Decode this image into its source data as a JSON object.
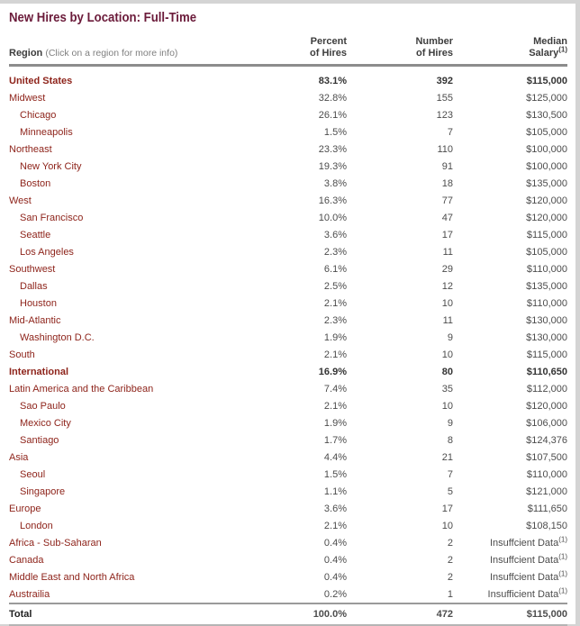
{
  "title": "New Hires by Location: Full-Time",
  "colors": {
    "title_maroon": "#6b1b3a",
    "region_link_red": "#8e241b",
    "value_gray": "#4c4c4c",
    "header_rule_gray": "#8c8c8c",
    "page_edge_gray": "#d4d4d4"
  },
  "table": {
    "header": {
      "region_label": "Region",
      "region_hint": "(Click on a region for more info)",
      "percent_line1": "Percent",
      "percent_line2": "of Hires",
      "number_line1": "Number",
      "number_line2": "of Hires",
      "salary_line1": "Median",
      "salary_line2": "Salary",
      "salary_sup": "(1)"
    },
    "rows": [
      {
        "region": "United States",
        "indent": 0,
        "bold": true,
        "percent": "83.1%",
        "number": "392",
        "salary": "$115,000"
      },
      {
        "region": "Midwest",
        "indent": 0,
        "bold": false,
        "percent": "32.8%",
        "number": "155",
        "salary": "$125,000"
      },
      {
        "region": "Chicago",
        "indent": 1,
        "bold": false,
        "percent": "26.1%",
        "number": "123",
        "salary": "$130,500"
      },
      {
        "region": "Minneapolis",
        "indent": 1,
        "bold": false,
        "percent": "1.5%",
        "number": "7",
        "salary": "$105,000"
      },
      {
        "region": "Northeast",
        "indent": 0,
        "bold": false,
        "percent": "23.3%",
        "number": "110",
        "salary": "$100,000"
      },
      {
        "region": "New York City",
        "indent": 1,
        "bold": false,
        "percent": "19.3%",
        "number": "91",
        "salary": "$100,000"
      },
      {
        "region": "Boston",
        "indent": 1,
        "bold": false,
        "percent": "3.8%",
        "number": "18",
        "salary": "$135,000"
      },
      {
        "region": "West",
        "indent": 0,
        "bold": false,
        "percent": "16.3%",
        "number": "77",
        "salary": "$120,000"
      },
      {
        "region": "San Francisco",
        "indent": 1,
        "bold": false,
        "percent": "10.0%",
        "number": "47",
        "salary": "$120,000"
      },
      {
        "region": "Seattle",
        "indent": 1,
        "bold": false,
        "percent": "3.6%",
        "number": "17",
        "salary": "$115,000"
      },
      {
        "region": "Los Angeles",
        "indent": 1,
        "bold": false,
        "percent": "2.3%",
        "number": "11",
        "salary": "$105,000"
      },
      {
        "region": "Southwest",
        "indent": 0,
        "bold": false,
        "percent": "6.1%",
        "number": "29",
        "salary": "$110,000"
      },
      {
        "region": "Dallas",
        "indent": 1,
        "bold": false,
        "percent": "2.5%",
        "number": "12",
        "salary": "$135,000"
      },
      {
        "region": "Houston",
        "indent": 1,
        "bold": false,
        "percent": "2.1%",
        "number": "10",
        "salary": "$110,000"
      },
      {
        "region": "Mid-Atlantic",
        "indent": 0,
        "bold": false,
        "percent": "2.3%",
        "number": "11",
        "salary": "$130,000"
      },
      {
        "region": "Washington D.C.",
        "indent": 1,
        "bold": false,
        "percent": "1.9%",
        "number": "9",
        "salary": "$130,000"
      },
      {
        "region": "South",
        "indent": 0,
        "bold": false,
        "percent": "2.1%",
        "number": "10",
        "salary": "$115,000"
      },
      {
        "region": "International",
        "indent": 0,
        "bold": true,
        "percent": "16.9%",
        "number": "80",
        "salary": "$110,650"
      },
      {
        "region": "Latin America and the Caribbean",
        "indent": 0,
        "bold": false,
        "percent": "7.4%",
        "number": "35",
        "salary": "$112,000"
      },
      {
        "region": "Sao Paulo",
        "indent": 1,
        "bold": false,
        "percent": "2.1%",
        "number": "10",
        "salary": "$120,000"
      },
      {
        "region": "Mexico City",
        "indent": 1,
        "bold": false,
        "percent": "1.9%",
        "number": "9",
        "salary": "$106,000"
      },
      {
        "region": "Santiago",
        "indent": 1,
        "bold": false,
        "percent": "1.7%",
        "number": "8",
        "salary": "$124,376"
      },
      {
        "region": "Asia",
        "indent": 0,
        "bold": false,
        "percent": "4.4%",
        "number": "21",
        "salary": "$107,500"
      },
      {
        "region": "Seoul",
        "indent": 1,
        "bold": false,
        "percent": "1.5%",
        "number": "7",
        "salary": "$110,000"
      },
      {
        "region": "Singapore",
        "indent": 1,
        "bold": false,
        "percent": "1.1%",
        "number": "5",
        "salary": "$121,000"
      },
      {
        "region": "Europe",
        "indent": 0,
        "bold": false,
        "percent": "3.6%",
        "number": "17",
        "salary": "$111,650"
      },
      {
        "region": "London",
        "indent": 1,
        "bold": false,
        "percent": "2.1%",
        "number": "10",
        "salary": "$108,150"
      },
      {
        "region": "Africa - Sub-Saharan",
        "indent": 0,
        "bold": false,
        "percent": "0.4%",
        "number": "2",
        "salary": "Insuffcient Data",
        "salary_sup": "(1)"
      },
      {
        "region": "Canada",
        "indent": 0,
        "bold": false,
        "percent": "0.4%",
        "number": "2",
        "salary": "Insuffcient Data",
        "salary_sup": "(1)"
      },
      {
        "region": "Middle East and North Africa",
        "indent": 0,
        "bold": false,
        "percent": "0.4%",
        "number": "2",
        "salary": "Insuffcient Data",
        "salary_sup": "(1)"
      },
      {
        "region": "Austrailia",
        "indent": 0,
        "bold": false,
        "percent": "0.2%",
        "number": "1",
        "salary": "Insufficient Data",
        "salary_sup": "(1)"
      }
    ],
    "total": {
      "region": "Total",
      "percent": "100.0%",
      "number": "472",
      "salary": "$115,000"
    }
  }
}
